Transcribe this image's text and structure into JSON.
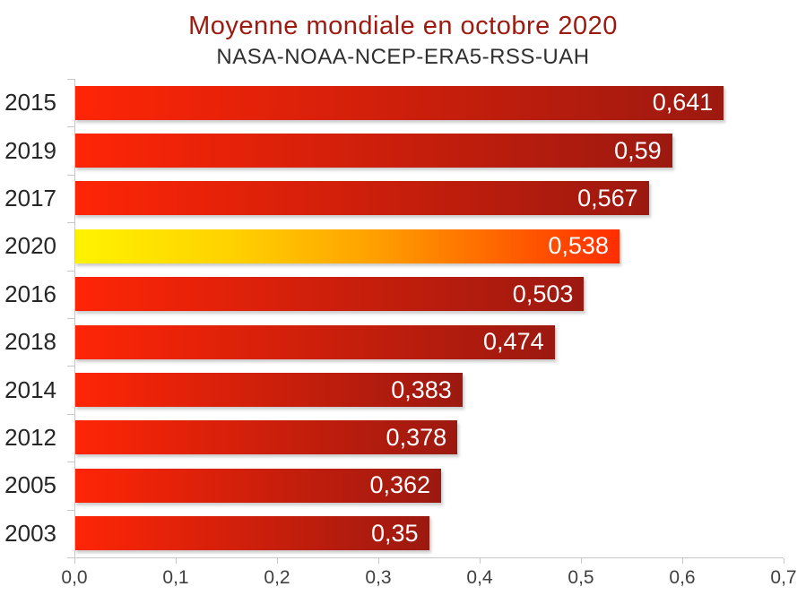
{
  "header": {
    "title": "Moyenne mondiale en octobre 2020",
    "subtitle": "NASA-NOAA-NCEP-ERA5-RSS-UAH"
  },
  "chart_data": {
    "type": "bar",
    "orientation": "horizontal",
    "title": "Moyenne mondiale en octobre 2020",
    "subtitle": "NASA-NOAA-NCEP-ERA5-RSS-UAH",
    "categories": [
      "2015",
      "2019",
      "2017",
      "2020",
      "2016",
      "2018",
      "2014",
      "2012",
      "2005",
      "2003"
    ],
    "values": [
      0.641,
      0.59,
      0.567,
      0.538,
      0.503,
      0.474,
      0.383,
      0.378,
      0.362,
      0.35
    ],
    "value_labels": [
      "0,641",
      "0,59",
      "0,567",
      "0,538",
      "0,503",
      "0,474",
      "0,383",
      "0,378",
      "0,362",
      "0,35"
    ],
    "xlabel": "",
    "ylabel": "",
    "xlim": [
      0,
      0.7
    ],
    "x_ticks": [
      "0,0",
      "0,1",
      "0,2",
      "0,3",
      "0,4",
      "0,5",
      "0,6",
      "0,7"
    ],
    "x_tick_values": [
      0,
      0.1,
      0.2,
      0.3,
      0.4,
      0.5,
      0.6,
      0.7
    ],
    "grid": false,
    "legend": null,
    "highlight_category": "2020",
    "colors": {
      "bar_gradient_start": "#ff2506",
      "bar_gradient_end": "#9c1910",
      "highlight_gradient": [
        "#fff300",
        "#ffd000",
        "#ffa000",
        "#ff5f00",
        "#ff2d00"
      ],
      "title_color": "#9c1a0f",
      "subtitle_color": "#2f2f2f",
      "value_label_color": "#ffffff",
      "axis_color": "#c6c6c6",
      "tick_label_color": "#404040",
      "year_label_color": "#262626"
    }
  }
}
